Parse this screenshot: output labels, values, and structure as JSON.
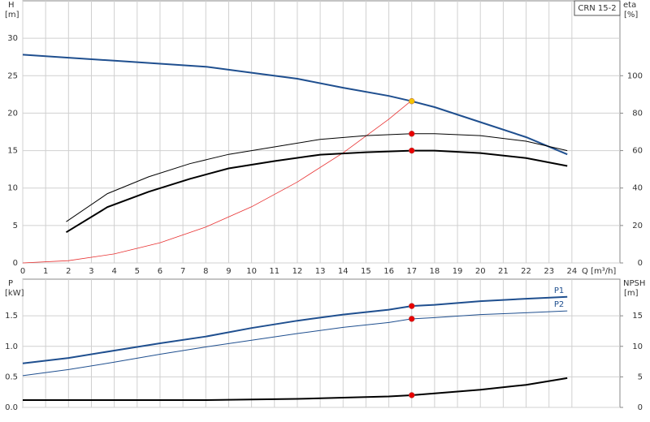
{
  "chart_data": [
    {
      "type": "line",
      "model": "CRN 15-2",
      "ylabel": "H",
      "yunit": "[m]",
      "y2label": "eta",
      "y2unit": "[%]",
      "xlabel": "Q [m³/h]",
      "xlim": [
        0,
        26.1
      ],
      "xticks": [
        0,
        1,
        2,
        3,
        4,
        5,
        6,
        7,
        8,
        9,
        10,
        11,
        12,
        13,
        14,
        15,
        16,
        17,
        18,
        19,
        20,
        21,
        22,
        23,
        24
      ],
      "xtick_labels": true,
      "ylim": [
        0,
        35
      ],
      "yticks": [
        0,
        5,
        10,
        15,
        20,
        25,
        30
      ],
      "y2lim": [
        0,
        140
      ],
      "y2ticks": [
        0,
        20,
        40,
        60,
        80,
        100
      ],
      "grid": true,
      "series": [
        {
          "type": "line",
          "color": "#1f4f8f",
          "line_width": 2,
          "axis": "y",
          "x": [
            0,
            2,
            4,
            6,
            8,
            10,
            12,
            14,
            16,
            17,
            18,
            20,
            22,
            23.8
          ],
          "values": [
            27.8,
            27.4,
            27.0,
            26.6,
            26.2,
            25.4,
            24.6,
            23.4,
            22.3,
            21.6,
            20.8,
            18.8,
            16.8,
            14.5
          ]
        },
        {
          "type": "line",
          "color": "#e83030",
          "line_width": 0.8,
          "axis": "y",
          "x": [
            0,
            2,
            4,
            6,
            8,
            10,
            12,
            14,
            16,
            17
          ],
          "values": [
            0,
            0.3,
            1.2,
            2.7,
            4.8,
            7.5,
            10.8,
            14.7,
            19.2,
            21.7
          ]
        },
        {
          "type": "line",
          "color": "#000000",
          "line_width": 1,
          "axis": "y2",
          "x": [
            1.9,
            3.7,
            5.5,
            7.3,
            9,
            11,
            13,
            15,
            17,
            18,
            20,
            22,
            23.8
          ],
          "values": [
            22,
            37,
            46,
            53,
            58,
            62,
            66,
            68,
            69,
            69,
            68,
            65,
            60
          ]
        },
        {
          "type": "line",
          "color": "#000000",
          "line_width": 2,
          "axis": "y2",
          "x": [
            1.9,
            3.7,
            5.5,
            7.3,
            9,
            11,
            13,
            15,
            17,
            18,
            20,
            22,
            23.8
          ],
          "values": [
            16.4,
            29.8,
            38,
            44.9,
            50.5,
            54.4,
            57.8,
            59.1,
            60,
            60,
            58.7,
            56,
            51.8
          ]
        },
        {
          "type": "scatter",
          "color": "#f5c400",
          "axis": "y",
          "x": [
            17
          ],
          "values": [
            21.6
          ]
        },
        {
          "type": "scatter",
          "color": "#e80000",
          "axis": "y2",
          "x": [
            17,
            17
          ],
          "values": [
            69,
            60
          ]
        }
      ]
    },
    {
      "type": "line",
      "ylabel": "P",
      "yunit": "[kW]",
      "y2label": "NPSH",
      "y2unit": "[m]",
      "xlim": [
        0,
        26.1
      ],
      "xticks": [
        0,
        1,
        2,
        3,
        4,
        5,
        6,
        7,
        8,
        9,
        10,
        11,
        12,
        13,
        14,
        15,
        16,
        17,
        18,
        19,
        20,
        21,
        22,
        23,
        24
      ],
      "xtick_labels": false,
      "ylim": [
        0,
        2.1
      ],
      "yticks": [
        {
          "value": 0,
          "label": "0.0"
        },
        0.5,
        {
          "value": 1,
          "label": "1.0"
        },
        1.5
      ],
      "y2lim": [
        0,
        21
      ],
      "y2ticks": [
        0,
        5,
        10,
        15
      ],
      "grid": true,
      "series": [
        {
          "type": "line",
          "name": "P1",
          "color": "#1f4f8f",
          "line_width": 2,
          "axis": "y",
          "x": [
            0,
            2,
            4,
            6,
            8,
            10,
            12,
            14,
            16,
            17,
            18,
            20,
            22,
            23.8
          ],
          "values": [
            0.72,
            0.81,
            0.93,
            1.05,
            1.16,
            1.3,
            1.42,
            1.52,
            1.6,
            1.66,
            1.68,
            1.74,
            1.78,
            1.81
          ]
        },
        {
          "type": "line",
          "name": "P2",
          "color": "#1f4f8f",
          "line_width": 1,
          "axis": "y",
          "x": [
            0,
            2,
            4,
            6,
            8,
            10,
            12,
            14,
            16,
            17,
            18,
            20,
            22,
            23.8
          ],
          "values": [
            0.52,
            0.62,
            0.74,
            0.87,
            0.99,
            1.1,
            1.21,
            1.31,
            1.39,
            1.45,
            1.47,
            1.52,
            1.55,
            1.58
          ]
        },
        {
          "type": "line",
          "color": "#000000",
          "line_width": 2,
          "axis": "y2",
          "x": [
            0,
            4,
            8,
            10,
            12,
            14,
            16,
            17,
            18,
            20,
            22,
            23.8
          ],
          "values": [
            1.2,
            1.2,
            1.2,
            1.3,
            1.4,
            1.6,
            1.8,
            2.0,
            2.3,
            2.9,
            3.7,
            4.8
          ]
        },
        {
          "type": "scatter",
          "color": "#e80000",
          "axis": "y",
          "x": [
            17,
            17
          ],
          "values": [
            1.66,
            1.45
          ]
        },
        {
          "type": "scatter",
          "color": "#e80000",
          "axis": "y2",
          "x": [
            17
          ],
          "values": [
            2.0
          ]
        }
      ]
    }
  ]
}
